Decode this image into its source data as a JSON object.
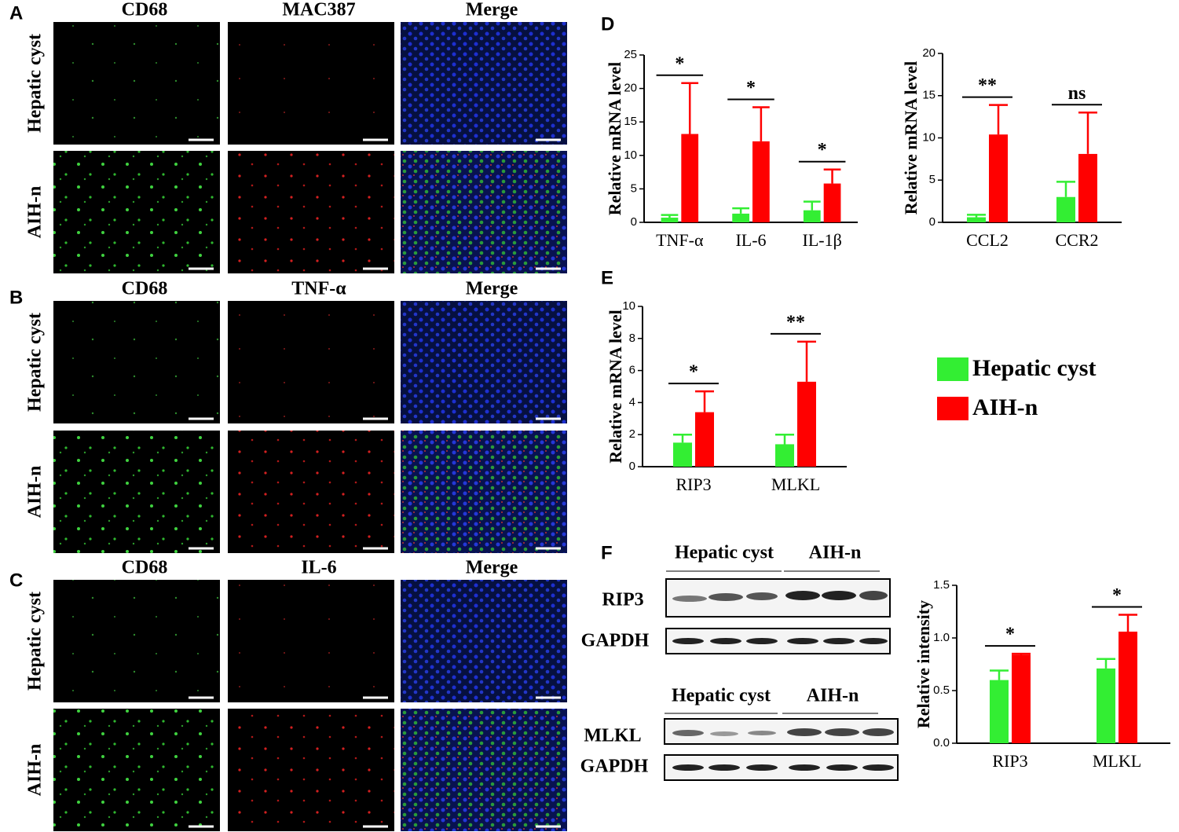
{
  "panel_labels": [
    "A",
    "B",
    "C",
    "D",
    "E",
    "F"
  ],
  "micrographs": [
    {
      "columns": [
        "CD68",
        "MAC387",
        "Merge"
      ],
      "rows": [
        "Hepatic cyst",
        "AIH-n"
      ]
    },
    {
      "columns": [
        "CD68",
        "TNF-α",
        "Merge"
      ],
      "rows": [
        "Hepatic cyst",
        "AIH-n"
      ]
    },
    {
      "columns": [
        "CD68",
        "IL-6",
        "Merge"
      ],
      "rows": [
        "Hepatic cyst",
        "AIH-n"
      ]
    }
  ],
  "blots": [
    {
      "groups": [
        "Hepatic cyst",
        "AIH-n"
      ],
      "rows": [
        "RIP3",
        "GAPDH"
      ]
    },
    {
      "groups": [
        "Hepatic cyst",
        "AIH-n"
      ],
      "rows": [
        "MLKL",
        "GAPDH"
      ]
    }
  ],
  "chart_data": [
    {
      "type": "bar",
      "y_label": "Relative mRNA level",
      "categories": [
        "TNF-α",
        "IL-6",
        "IL-1β"
      ],
      "series": [
        {
          "name": "Hepatic cyst",
          "color": "#33ee33",
          "values": [
            0.7,
            1.3,
            1.8
          ],
          "errors": [
            0.4,
            0.8,
            1.3
          ]
        },
        {
          "name": "AIH-n",
          "color": "#ff0000",
          "values": [
            13.2,
            12.1,
            5.8
          ],
          "errors": [
            7.6,
            5.1,
            2.1
          ]
        }
      ],
      "significance": [
        "*",
        "*",
        "*"
      ],
      "ylim": [
        0,
        25
      ],
      "yticks": [
        0,
        5,
        10,
        15,
        20,
        25
      ]
    },
    {
      "type": "bar",
      "y_label": "Relative mRNA level",
      "categories": [
        "CCL2",
        "CCR2"
      ],
      "series": [
        {
          "name": "Hepatic cyst",
          "color": "#33ee33",
          "values": [
            0.6,
            3.0
          ],
          "errors": [
            0.3,
            1.8
          ]
        },
        {
          "name": "AIH-n",
          "color": "#ff0000",
          "values": [
            10.4,
            8.1
          ],
          "errors": [
            3.5,
            4.9
          ]
        }
      ],
      "significance": [
        "**",
        "ns"
      ],
      "ylim": [
        0,
        20
      ],
      "yticks": [
        0,
        5,
        10,
        15,
        20
      ]
    },
    {
      "type": "bar",
      "y_label": "Relative mRNA level",
      "categories": [
        "RIP3",
        "MLKL"
      ],
      "series": [
        {
          "name": "Hepatic cyst",
          "color": "#33ee33",
          "values": [
            1.5,
            1.4
          ],
          "errors": [
            0.5,
            0.6
          ]
        },
        {
          "name": "AIH-n",
          "color": "#ff0000",
          "values": [
            3.4,
            5.3
          ],
          "errors": [
            1.3,
            2.5
          ]
        }
      ],
      "significance": [
        "*",
        "**"
      ],
      "ylim": [
        0,
        10
      ],
      "yticks": [
        0,
        2,
        4,
        6,
        8,
        10
      ],
      "legend": "right"
    },
    {
      "type": "bar",
      "y_label": "Relative intensity",
      "categories": [
        "RIP3",
        "MLKL"
      ],
      "series": [
        {
          "name": "Hepatic cyst",
          "color": "#33ee33",
          "values": [
            0.6,
            0.71
          ],
          "errors": [
            0.09,
            0.09
          ]
        },
        {
          "name": "AIH-n",
          "color": "#ff0000",
          "values": [
            0.84,
            1.06
          ],
          "errors": [
            0.01,
            0.16
          ]
        }
      ],
      "significance": [
        "*",
        "*"
      ],
      "ylim": [
        0,
        1.5
      ],
      "yticks": [
        {
          "value": 0,
          "label": "0.0"
        },
        {
          "value": 0.5,
          "label": "0.5"
        },
        {
          "value": 1,
          "label": "1.0"
        },
        {
          "value": 1.5,
          "label": "1.5"
        }
      ]
    }
  ]
}
